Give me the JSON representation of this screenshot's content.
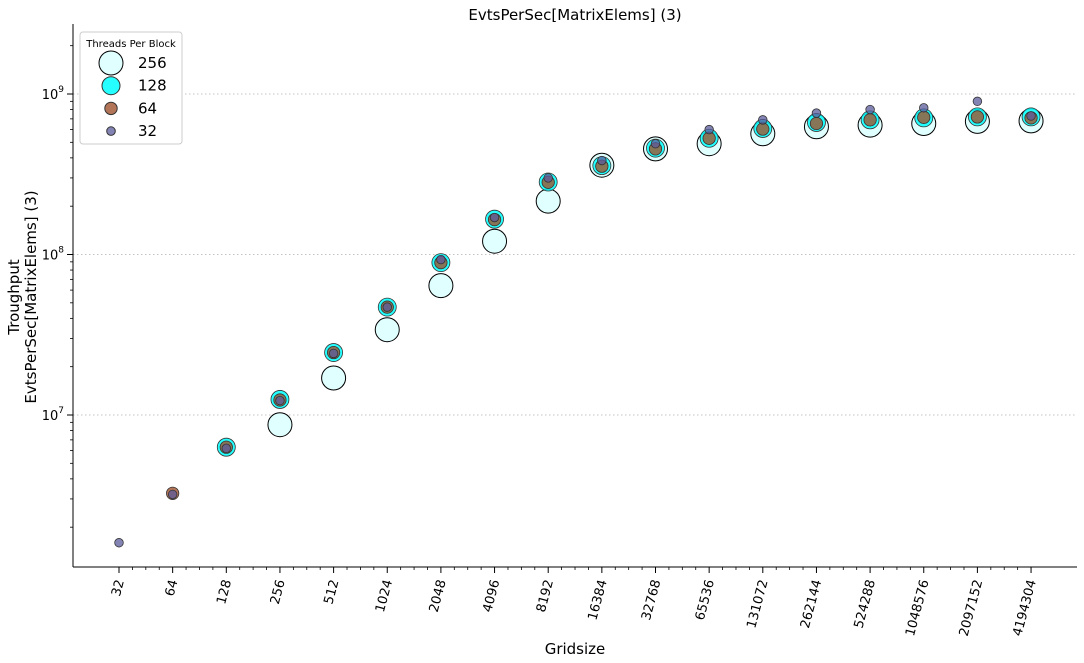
{
  "chart_data": {
    "type": "scatter",
    "title": "EvtsPerSec[MatrixElems] (3)",
    "xlabel": "Gridsize",
    "ylabel_lines": [
      "Troughput",
      "EvtsPerSec[MatrixElems] (3)"
    ],
    "x_scale": "log2",
    "y_scale": "log10",
    "categories": [
      "32",
      "64",
      "128",
      "256",
      "512",
      "1024",
      "2048",
      "4096",
      "8192",
      "16384",
      "32768",
      "65536",
      "131072",
      "262144",
      "524288",
      "1048576",
      "2097152",
      "4194304"
    ],
    "x": [
      32,
      64,
      128,
      256,
      512,
      1024,
      2048,
      4096,
      8192,
      16384,
      32768,
      65536,
      131072,
      262144,
      524288,
      1048576,
      2097152,
      4194304
    ],
    "y_ticks": [
      {
        "value": 10000000,
        "base": "10",
        "exp": "7"
      },
      {
        "value": 100000000,
        "base": "10",
        "exp": "8"
      },
      {
        "value": 1000000000,
        "base": "10",
        "exp": "9"
      }
    ],
    "grid": "horizontal dotted at major y ticks",
    "legend": {
      "title": "Threads Per Block",
      "placement": "top-left"
    },
    "series": [
      {
        "name": "256",
        "color": "#e0ffff",
        "edge": "#000000",
        "values": [
          null,
          null,
          null,
          8700000,
          17000000,
          34000000,
          64000000,
          121000000,
          215000000,
          360000000,
          455000000,
          490000000,
          565000000,
          625000000,
          640000000,
          655000000,
          675000000,
          680000000
        ]
      },
      {
        "name": "128",
        "color": "#00ffff",
        "edge": "#333333",
        "values": [
          null,
          null,
          6300000,
          12500000,
          24500000,
          47000000,
          89000000,
          166000000,
          283000000,
          358000000,
          460000000,
          530000000,
          610000000,
          665000000,
          690000000,
          710000000,
          720000000,
          720000000
        ]
      },
      {
        "name": "64",
        "color": "#a0522d",
        "edge": "#333333",
        "values": [
          null,
          3250000,
          6300000,
          12400000,
          24500000,
          47000000,
          89000000,
          165000000,
          282000000,
          355000000,
          455000000,
          530000000,
          605000000,
          655000000,
          690000000,
          715000000,
          720000000,
          710000000
        ]
      },
      {
        "name": "32",
        "color": "#5b5b9b",
        "edge": "#333333",
        "values": [
          1600000,
          3200000,
          6200000,
          12300000,
          24200000,
          47000000,
          93000000,
          170000000,
          300000000,
          385000000,
          490000000,
          600000000,
          690000000,
          760000000,
          800000000,
          820000000,
          900000000,
          730000000
        ]
      }
    ]
  }
}
